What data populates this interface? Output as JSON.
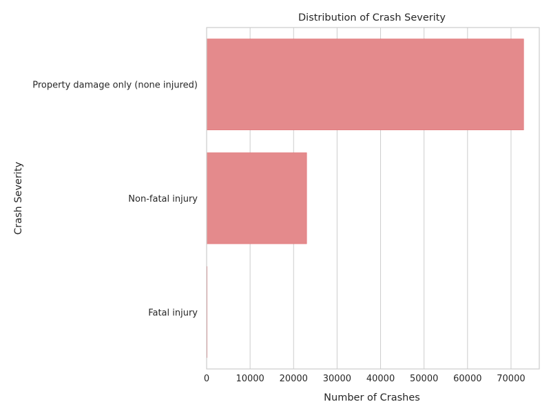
{
  "chart_data": {
    "type": "bar",
    "orientation": "horizontal",
    "title": "Distribution of Crash Severity",
    "xlabel": "Number of Crashes",
    "ylabel": "Crash Severity",
    "categories": [
      "Property damage only (none injured)",
      "Non-fatal injury",
      "Fatal injury"
    ],
    "values": [
      72900,
      23000,
      120
    ],
    "xlim": [
      0,
      76500
    ],
    "xticks": [
      0,
      10000,
      20000,
      30000,
      40000,
      50000,
      60000,
      70000
    ],
    "xtick_labels": [
      "0",
      "10000",
      "20000",
      "30000",
      "40000",
      "50000",
      "60000",
      "70000"
    ],
    "grid": "vertical",
    "legend": "none",
    "bar_color": "#e48a8c",
    "bar_edge_color": "#e06c70"
  }
}
